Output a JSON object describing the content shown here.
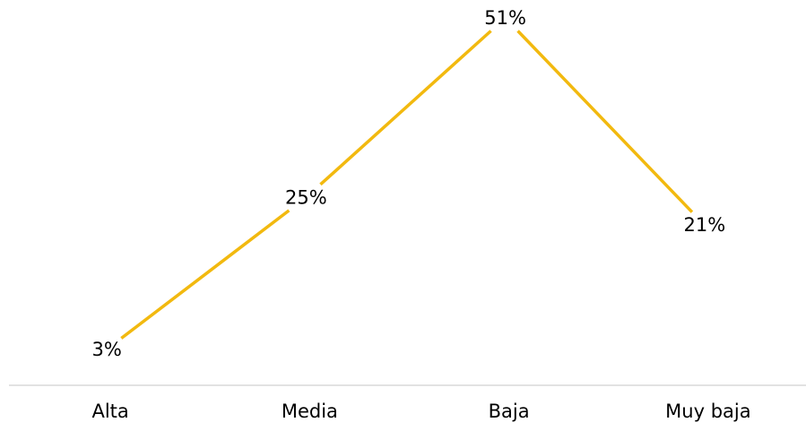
{
  "chart_data": {
    "type": "line",
    "categories": [
      "Alta",
      "Media",
      "Baja",
      "Muy baja"
    ],
    "series": [
      {
        "values": [
          3,
          25,
          51,
          21
        ]
      }
    ],
    "data_labels": [
      "3%",
      "25%",
      "51%",
      "21%"
    ],
    "title": "",
    "xlabel": "",
    "ylabel": "",
    "y_axis_visible": false,
    "grid": false,
    "legend": "none",
    "colors": {
      "line": "#F2B90F",
      "baseline": "#D9D9D9",
      "text": "#000000"
    }
  }
}
